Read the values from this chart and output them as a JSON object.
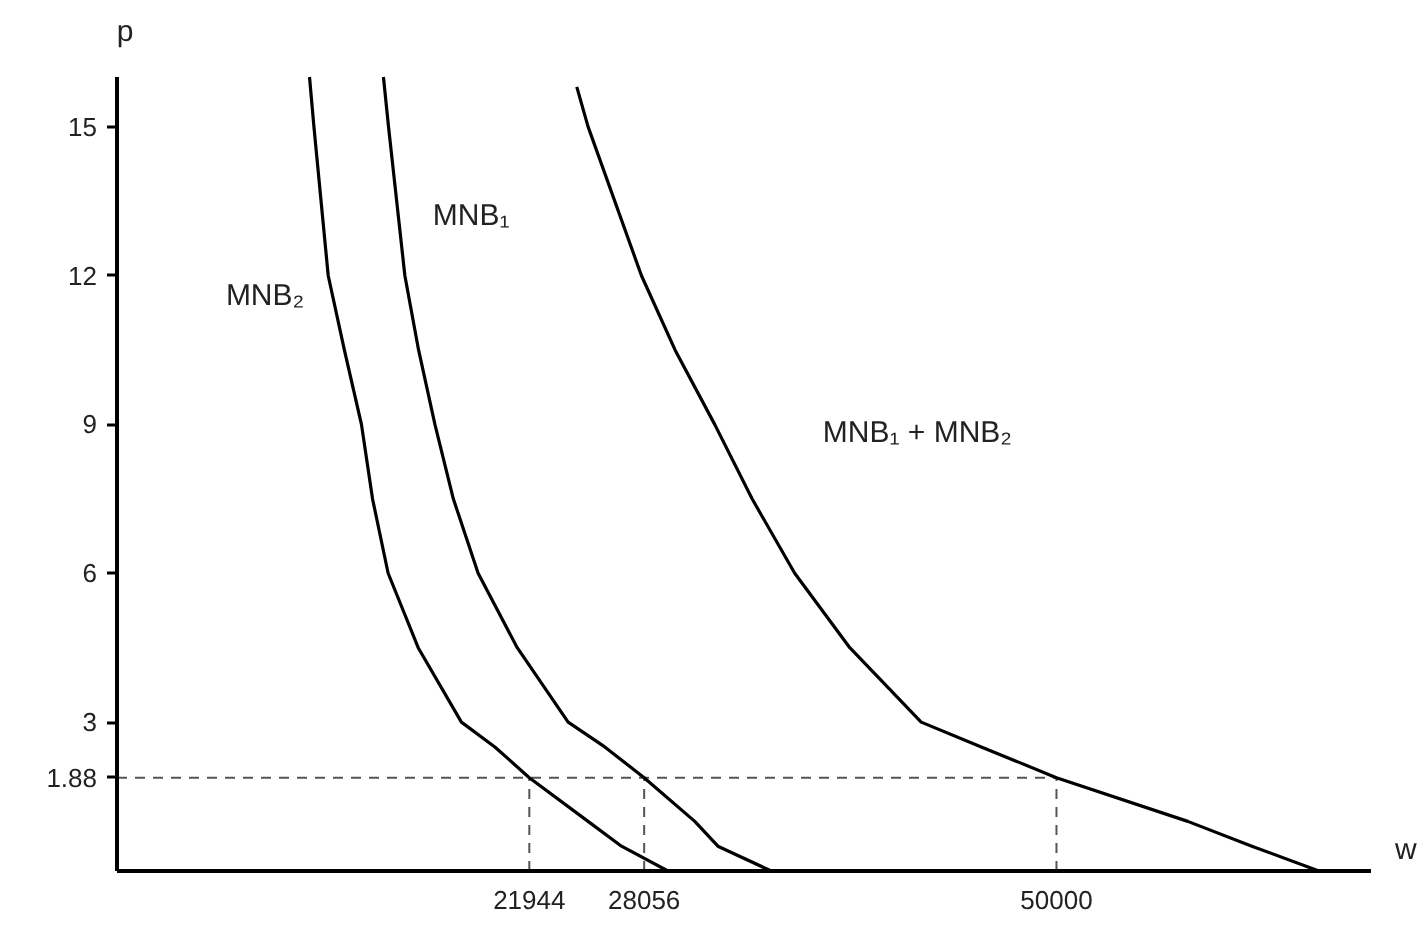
{
  "chart_data": {
    "type": "line",
    "xlabel": "w",
    "ylabel": "p",
    "xlim": [
      0,
      66740
    ],
    "ylim": [
      0,
      16
    ],
    "xticks": [
      21944,
      28056,
      50000
    ],
    "yticks": [
      1.88,
      3,
      6,
      9,
      12,
      15
    ],
    "grid": false,
    "legend": false,
    "marker": "none",
    "line_style": "solid",
    "series": [
      {
        "name": "MNB₂",
        "color": "#000000",
        "x": [
          10246,
          10480,
          11240,
          12100,
          13010,
          13600,
          14430,
          16030,
          18330,
          20110,
          21944,
          25070,
          26850,
          29320
        ],
        "values": [
          16.0,
          15,
          12,
          10.5,
          9,
          7.5,
          6,
          4.5,
          3,
          2.5,
          1.88,
          1,
          0.5,
          0
        ]
      },
      {
        "name": "MNB₁",
        "color": "#000000",
        "x": [
          14180,
          14450,
          15320,
          16050,
          16920,
          17900,
          19220,
          21300,
          24010,
          25960,
          28056,
          30750,
          31980,
          34820
        ],
        "values": [
          16.0,
          15,
          12,
          10.5,
          9,
          7.5,
          6,
          4.5,
          3,
          2.5,
          1.88,
          1,
          0.5,
          0
        ]
      },
      {
        "name": "MNB₁ + MNB₂",
        "color": "#000000",
        "x": [
          24470,
          25070,
          27910,
          29700,
          31810,
          33800,
          36070,
          39000,
          42800,
          46000,
          50000,
          56990,
          60400,
          63970
        ],
        "values": [
          15.8,
          15,
          12,
          10.5,
          9,
          7.5,
          6,
          4.5,
          3,
          2.5,
          1.88,
          1,
          0.5,
          0
        ]
      }
    ],
    "ref_lines": [
      {
        "axis": "y",
        "value": 1.88,
        "color": "#555555",
        "line_style": "dashed"
      },
      {
        "axis": "x",
        "value": 21944,
        "color": "#555555",
        "line_style": "dashed"
      },
      {
        "axis": "x",
        "value": 28056,
        "color": "#555555",
        "line_style": "dashed"
      },
      {
        "axis": "x",
        "value": 50000,
        "color": "#555555",
        "line_style": "dashed"
      }
    ]
  }
}
